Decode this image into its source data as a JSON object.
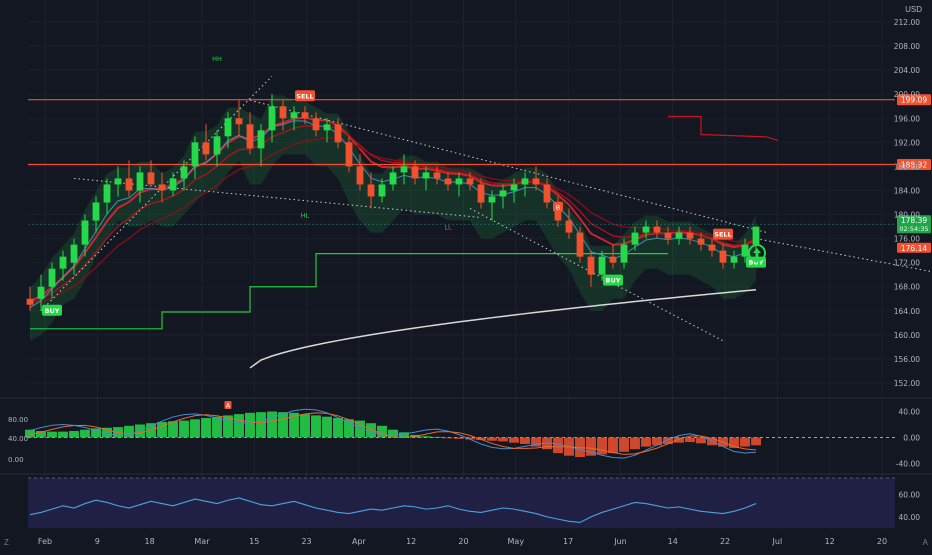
{
  "header": {
    "currency": "USD"
  },
  "corners": {
    "left": "Z",
    "right": "A"
  },
  "colors": {
    "background": "#131722",
    "bull": "#26d94a",
    "bear": "#f0512e",
    "resistance": "#f0512e",
    "ema_red": "#c8141e",
    "sma_gray": "#d9d9d9",
    "step_green": "#22c93c",
    "rsi_line": "#4aa3df",
    "rsi_band": "#23224a",
    "macd_blue": "#4a8ad4",
    "macd_orange": "#e86a2a"
  },
  "chart_data": [
    {
      "type": "candlestick",
      "pane": "price",
      "y_axis_ticks": [
        212,
        208,
        204,
        200,
        196,
        192,
        188,
        184,
        180,
        176,
        172,
        168,
        164,
        160,
        156,
        152
      ],
      "ylim": [
        150,
        214
      ],
      "x_axis_ticks": [
        "Feb",
        "9",
        "18",
        "Mar",
        "15",
        "23",
        "Apr",
        "12",
        "20",
        "May",
        "17",
        "Jun",
        "14",
        "22",
        "Jul",
        "12",
        "20"
      ],
      "ohlc": [
        [
          166,
          168,
          164,
          165
        ],
        [
          166,
          170,
          164,
          168
        ],
        [
          168,
          172,
          166,
          171
        ],
        [
          171,
          174,
          169,
          173
        ],
        [
          172,
          176,
          170,
          175
        ],
        [
          175,
          180,
          173,
          179
        ],
        [
          179,
          183,
          177,
          182
        ],
        [
          182,
          186,
          180,
          185
        ],
        [
          185,
          188,
          183,
          186
        ],
        [
          186,
          189,
          183,
          184
        ],
        [
          184,
          188,
          182,
          187
        ],
        [
          187,
          189,
          185,
          185
        ],
        [
          185,
          187,
          182,
          184
        ],
        [
          184,
          187,
          183,
          186
        ],
        [
          186,
          189,
          184,
          188
        ],
        [
          188,
          193,
          186,
          192
        ],
        [
          192,
          195,
          189,
          190
        ],
        [
          190,
          194,
          188,
          193
        ],
        [
          193,
          197,
          191,
          196
        ],
        [
          196,
          199,
          193,
          195
        ],
        [
          195,
          197,
          190,
          191
        ],
        [
          191,
          195,
          188,
          194
        ],
        [
          194,
          200,
          192,
          198
        ],
        [
          198,
          199,
          194,
          196
        ],
        [
          196,
          198,
          194,
          197
        ],
        [
          197,
          198,
          195,
          196
        ],
        [
          196,
          197,
          193,
          194
        ],
        [
          194,
          196,
          192,
          195
        ],
        [
          195,
          196,
          191,
          192
        ],
        [
          192,
          193,
          187,
          188
        ],
        [
          188,
          190,
          184,
          185
        ],
        [
          185,
          187,
          181,
          183
        ],
        [
          183,
          186,
          182,
          185
        ],
        [
          185,
          188,
          184,
          187
        ],
        [
          187,
          190,
          185,
          188
        ],
        [
          188,
          189,
          185,
          186
        ],
        [
          186,
          188,
          184,
          187
        ],
        [
          187,
          188,
          185,
          186
        ],
        [
          186,
          187,
          184,
          185
        ],
        [
          185,
          187,
          183,
          186
        ],
        [
          186,
          187,
          184,
          185
        ],
        [
          185,
          186,
          181,
          182
        ],
        [
          182,
          184,
          179,
          183
        ],
        [
          183,
          185,
          181,
          184
        ],
        [
          184,
          186,
          182,
          185
        ],
        [
          185,
          187,
          183,
          186
        ],
        [
          186,
          188,
          184,
          185
        ],
        [
          185,
          186,
          181,
          182
        ],
        [
          182,
          183,
          178,
          179
        ],
        [
          179,
          181,
          176,
          177
        ],
        [
          177,
          178,
          172,
          173
        ],
        [
          173,
          174,
          168,
          170
        ],
        [
          170,
          174,
          169,
          173
        ],
        [
          173,
          175,
          171,
          172
        ],
        [
          172,
          176,
          171,
          175
        ],
        [
          175,
          178,
          174,
          177
        ],
        [
          177,
          179,
          176,
          178
        ],
        [
          178,
          179,
          176,
          177
        ],
        [
          177,
          178,
          175,
          176
        ],
        [
          176,
          178,
          175,
          177
        ],
        [
          177,
          178,
          175,
          176
        ],
        [
          176,
          177,
          174,
          175
        ],
        [
          175,
          176,
          173,
          174
        ],
        [
          174,
          175,
          171,
          172
        ],
        [
          172,
          174,
          171,
          173
        ],
        [
          173,
          176,
          172,
          175
        ],
        [
          175,
          178,
          174,
          178
        ]
      ],
      "horizontal_levels": [
        {
          "value": 199.09,
          "label": "199.09"
        },
        {
          "value": 188.32,
          "label": "188.32"
        }
      ],
      "price_tags": [
        {
          "value": 178.39,
          "label": "178.39",
          "sublabel": "02:54:35"
        },
        {
          "value": 176.14,
          "label": "176.14"
        }
      ],
      "signals": [
        {
          "text": "BUY",
          "bar": 2,
          "kind": "buy"
        },
        {
          "text": "SELL",
          "bar": 25,
          "kind": "sell"
        },
        {
          "text": "BUY",
          "bar": 53,
          "kind": "buy"
        },
        {
          "text": "SELL",
          "bar": 63,
          "kind": "sell"
        },
        {
          "text": "BUY",
          "bar": 66,
          "kind": "buy"
        }
      ],
      "markers": [
        {
          "text": "HH",
          "bar": 17,
          "value": 205.5
        },
        {
          "text": "HL",
          "bar": 25,
          "value": 179.5
        },
        {
          "text": "LL",
          "bar": 38,
          "value": 177.5
        },
        {
          "text": "B",
          "bar": 48,
          "value": 181.3
        }
      ]
    },
    {
      "type": "bar",
      "pane": "oscillator",
      "name": "",
      "y_axis_ticks": [
        40,
        0,
        -40
      ],
      "left_ticks": [
        "80.00",
        "40.00",
        "0.00"
      ],
      "marker": "A",
      "ylim": [
        -50,
        50
      ],
      "values": [
        12,
        10,
        9,
        9,
        10,
        12,
        14,
        15,
        16,
        18,
        20,
        22,
        24,
        25,
        26,
        28,
        30,
        32,
        34,
        36,
        38,
        39,
        40,
        39,
        38,
        36,
        34,
        32,
        30,
        28,
        26,
        22,
        18,
        12,
        8,
        4,
        2,
        1,
        -1,
        -2,
        -3,
        -4,
        -5,
        -6,
        -8,
        -10,
        -14,
        -18,
        -24,
        -28,
        -30,
        -28,
        -26,
        -24,
        -22,
        -18,
        -14,
        -12,
        -10,
        -8,
        -7,
        -9,
        -12,
        -14,
        -16,
        -14,
        -12
      ]
    },
    {
      "type": "line",
      "pane": "rsi",
      "name": "",
      "y_axis_ticks": [
        60,
        40
      ],
      "ylim": [
        30,
        75
      ],
      "values": [
        42,
        44,
        47,
        50,
        48,
        52,
        55,
        53,
        50,
        48,
        51,
        54,
        52,
        50,
        53,
        56,
        54,
        52,
        55,
        57,
        54,
        51,
        50,
        52,
        54,
        51,
        48,
        46,
        44,
        43,
        45,
        47,
        46,
        48,
        50,
        49,
        47,
        48,
        50,
        47,
        45,
        44,
        46,
        48,
        47,
        45,
        43,
        40,
        38,
        36,
        35,
        40,
        44,
        47,
        50,
        53,
        52,
        50,
        48,
        49,
        47,
        45,
        44,
        43,
        45,
        48,
        52
      ]
    }
  ]
}
